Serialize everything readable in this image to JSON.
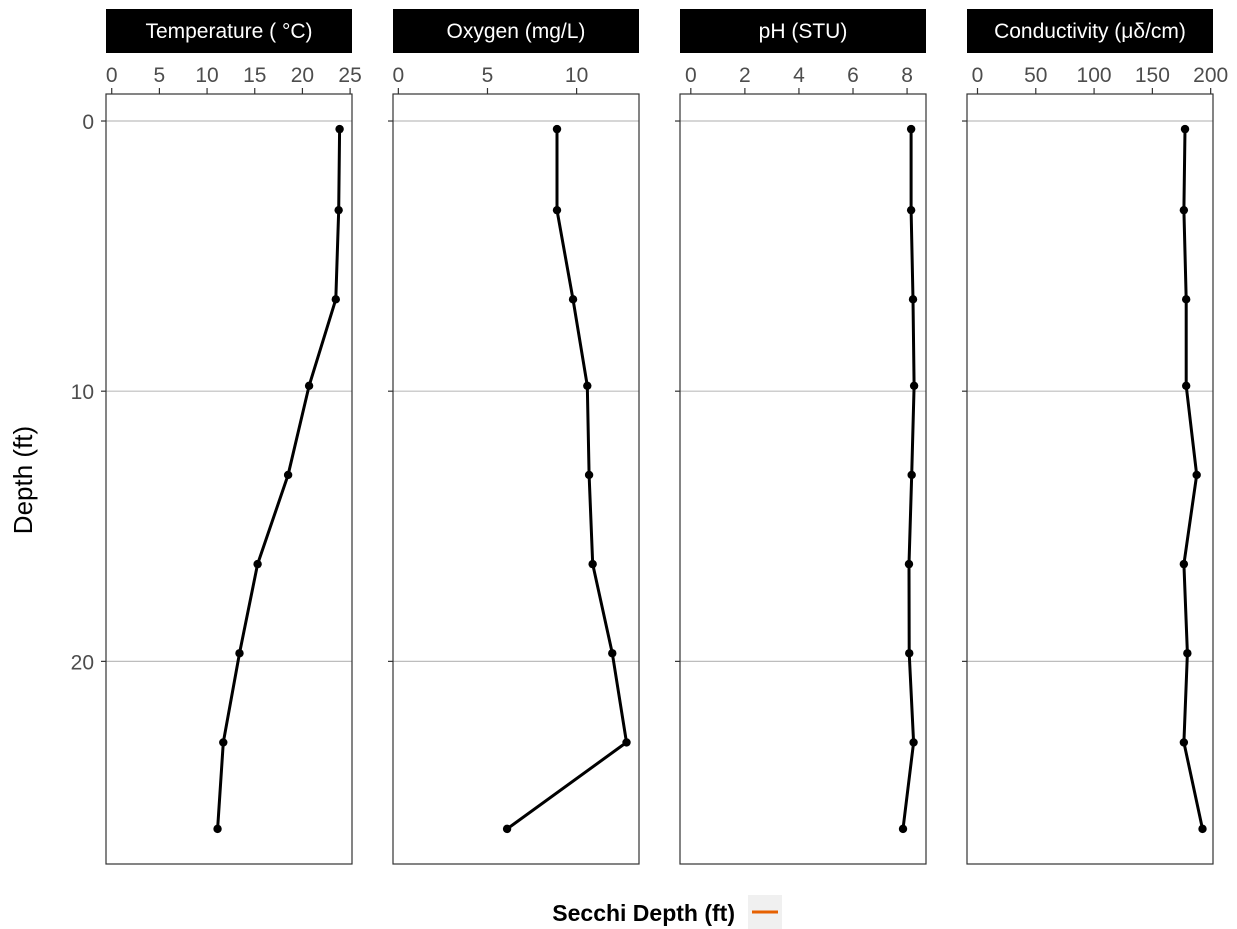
{
  "chart_data": {
    "type": "line",
    "y_axis": {
      "label": "Depth (ft)",
      "ticks": [
        "0",
        "10",
        "20"
      ],
      "tick_values": [
        0,
        10,
        20
      ],
      "range": [
        -1,
        27.5
      ],
      "reversed": true,
      "grid": true
    },
    "depths": [
      0.3,
      3.3,
      6.6,
      9.8,
      13.1,
      16.4,
      19.7,
      23.0,
      26.2
    ],
    "panels": [
      {
        "title": "Temperature ( °C)",
        "x_ticks": [
          "0",
          "5",
          "10",
          "15",
          "20",
          "25"
        ],
        "x_tick_values": [
          0,
          5,
          10,
          15,
          20,
          25
        ],
        "x_range": [
          -0.6,
          25.2
        ],
        "values": [
          23.9,
          23.8,
          23.5,
          20.7,
          18.5,
          15.3,
          13.4,
          11.7,
          11.1
        ]
      },
      {
        "title": "Oxygen (mg/L)",
        "x_ticks": [
          "0",
          "5",
          "10"
        ],
        "x_tick_values": [
          0,
          5,
          10
        ],
        "x_range": [
          -0.3,
          13.5
        ],
        "values": [
          8.9,
          8.9,
          9.8,
          10.6,
          10.7,
          10.9,
          12.0,
          12.8,
          6.1
        ]
      },
      {
        "title": "pH (STU)",
        "x_ticks": [
          "0",
          "2",
          "4",
          "6",
          "8"
        ],
        "x_tick_values": [
          0,
          2,
          4,
          6,
          8
        ],
        "x_range": [
          -0.4,
          8.7
        ],
        "values": [
          8.15,
          8.15,
          8.22,
          8.26,
          8.17,
          8.07,
          8.08,
          8.24,
          7.85
        ]
      },
      {
        "title": "Conductivity (μδ/cm)",
        "x_ticks": [
          "0",
          "50",
          "100",
          "150",
          "200"
        ],
        "x_tick_values": [
          0,
          50,
          100,
          150,
          200
        ],
        "x_range": [
          -9,
          202
        ],
        "values": [
          178,
          177,
          179,
          179,
          188,
          177,
          180,
          177,
          193
        ]
      }
    ],
    "legend": {
      "title": "Secchi Depth (ft)",
      "position": "bottom",
      "color": "#E66101"
    },
    "colors": {
      "line": "#000000",
      "strip_background": "#000000",
      "grid": "#bdbdbd"
    }
  }
}
